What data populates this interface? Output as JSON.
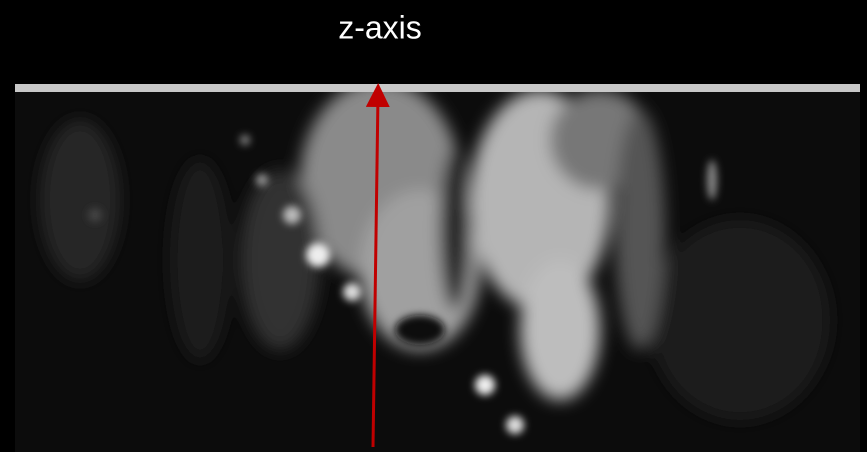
{
  "label": "z-axis"
}
